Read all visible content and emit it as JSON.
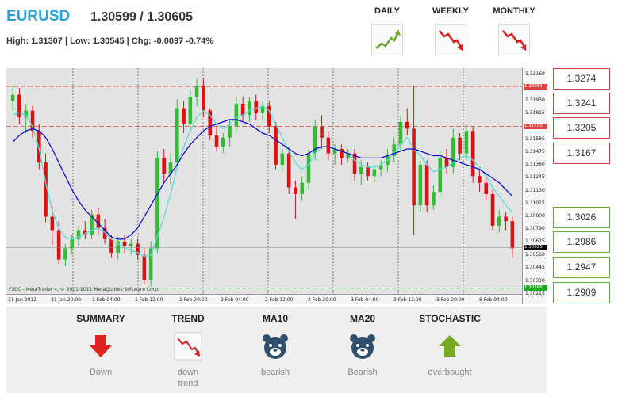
{
  "header": {
    "symbol": "EURUSD",
    "quote": "1.30599 / 1.30605",
    "stats": "High: 1.31307 | Low: 1.30545 | Chg: -0.0097 -0.74%"
  },
  "timeframes": [
    {
      "label": "DAILY",
      "icon": "trend-up-icon",
      "color": "#6aaa2a"
    },
    {
      "label": "WEEKLY",
      "icon": "trend-down-icon",
      "color": "#d02020"
    },
    {
      "label": "MONTHLY",
      "icon": "trend-down-icon",
      "color": "#d02020"
    }
  ],
  "chart": {
    "copyright": "FXCC - MetaTrader 4, © 2001-2011 MetaQuotes Software Corp.",
    "price_ticks": [
      "1.32160",
      "1.32054",
      "1.31930",
      "1.31815",
      "1.31700",
      "1.31585",
      "1.31475",
      "1.31360",
      "1.31245",
      "1.31130",
      "1.31015",
      "1.30900",
      "1.30790",
      "1.30675",
      "1.30625",
      "1.30560",
      "1.30445",
      "1.30330",
      "1.30266",
      "1.30215"
    ],
    "time_ticks": [
      "31 Jan 2012",
      "31 Jan 20:00",
      "1 Feb 04:00",
      "1 Feb 12:00",
      "1 Feb 20:00",
      "2 Feb 04:00",
      "2 Feb 12:00",
      "2 Feb 20:00",
      "3 Feb 04:00",
      "3 Feb 12:00",
      "3 Feb 20:00",
      "6 Feb 04:00"
    ],
    "colors": {
      "bull": "#33bb33",
      "bear": "#dd1111",
      "ma10": "#55dddd",
      "ma20": "#1111cc",
      "resistance": "#dd4444",
      "support": "#22aa22"
    }
  },
  "chart_data": {
    "type": "candlestick",
    "title": "EURUSD",
    "ylim": [
      1.30215,
      1.32216
    ],
    "resistance_lines": [
      1.32054,
      1.317
    ],
    "support_lines": [
      1.30266
    ],
    "last_price": 1.30625,
    "candles": [
      [
        1.3192,
        1.3206,
        1.3184,
        1.3198
      ],
      [
        1.3198,
        1.3204,
        1.3172,
        1.3178
      ],
      [
        1.3178,
        1.319,
        1.3164,
        1.3184
      ],
      [
        1.3184,
        1.3188,
        1.316,
        1.3166
      ],
      [
        1.3166,
        1.3172,
        1.3132,
        1.3138
      ],
      [
        1.3138,
        1.3146,
        1.3085,
        1.309
      ],
      [
        1.309,
        1.3099,
        1.3065,
        1.3078
      ],
      [
        1.3078,
        1.3086,
        1.3048,
        1.3052
      ],
      [
        1.3052,
        1.3066,
        1.3046,
        1.3062
      ],
      [
        1.3062,
        1.3074,
        1.3057,
        1.307
      ],
      [
        1.307,
        1.3082,
        1.3064,
        1.3078
      ],
      [
        1.3078,
        1.3086,
        1.307,
        1.3074
      ],
      [
        1.3074,
        1.3096,
        1.307,
        1.3092
      ],
      [
        1.3092,
        1.3098,
        1.3074,
        1.308
      ],
      [
        1.308,
        1.3088,
        1.3066,
        1.307
      ],
      [
        1.307,
        1.3074,
        1.3054,
        1.3058
      ],
      [
        1.3058,
        1.3072,
        1.3052,
        1.3068
      ],
      [
        1.3068,
        1.3074,
        1.3058,
        1.3064
      ],
      [
        1.3064,
        1.307,
        1.3056,
        1.3066
      ],
      [
        1.3066,
        1.307,
        1.3052,
        1.3056
      ],
      [
        1.3056,
        1.3062,
        1.303,
        1.3034
      ],
      [
        1.3034,
        1.3068,
        1.3028,
        1.3062
      ],
      [
        1.3062,
        1.3148,
        1.3058,
        1.3142
      ],
      [
        1.3142,
        1.315,
        1.312,
        1.3128
      ],
      [
        1.3128,
        1.3146,
        1.3118,
        1.3138
      ],
      [
        1.3138,
        1.3194,
        1.3132,
        1.3186
      ],
      [
        1.3186,
        1.3192,
        1.3164,
        1.3172
      ],
      [
        1.3172,
        1.3202,
        1.3166,
        1.3196
      ],
      [
        1.3196,
        1.3212,
        1.3188,
        1.3206
      ],
      [
        1.3206,
        1.3212,
        1.3178,
        1.3184
      ],
      [
        1.3184,
        1.3186,
        1.3158,
        1.3162
      ],
      [
        1.3162,
        1.317,
        1.3148,
        1.3152
      ],
      [
        1.3152,
        1.3164,
        1.3146,
        1.316
      ],
      [
        1.316,
        1.3176,
        1.3152,
        1.317
      ],
      [
        1.317,
        1.3196,
        1.3164,
        1.319
      ],
      [
        1.319,
        1.3196,
        1.3174,
        1.318
      ],
      [
        1.318,
        1.3196,
        1.3174,
        1.3192
      ],
      [
        1.3192,
        1.3198,
        1.3176,
        1.3182
      ],
      [
        1.3182,
        1.3192,
        1.3176,
        1.3188
      ],
      [
        1.3188,
        1.3192,
        1.3164,
        1.317
      ],
      [
        1.317,
        1.3174,
        1.3132,
        1.3136
      ],
      [
        1.3136,
        1.315,
        1.313,
        1.3146
      ],
      [
        1.3146,
        1.3152,
        1.311,
        1.3116
      ],
      [
        1.3116,
        1.3122,
        1.3088,
        1.311
      ],
      [
        1.311,
        1.3126,
        1.3104,
        1.312
      ],
      [
        1.312,
        1.315,
        1.3114,
        1.3146
      ],
      [
        1.3146,
        1.3176,
        1.314,
        1.317
      ],
      [
        1.317,
        1.318,
        1.315,
        1.316
      ],
      [
        1.316,
        1.3166,
        1.314,
        1.3146
      ],
      [
        1.3146,
        1.3154,
        1.3136,
        1.315
      ],
      [
        1.315,
        1.3154,
        1.3136,
        1.3142
      ],
      [
        1.3142,
        1.315,
        1.3138,
        1.3146
      ],
      [
        1.3146,
        1.315,
        1.3122,
        1.3128
      ],
      [
        1.3128,
        1.314,
        1.3118,
        1.3134
      ],
      [
        1.3134,
        1.3138,
        1.3122,
        1.3126
      ],
      [
        1.3126,
        1.3136,
        1.312,
        1.3132
      ],
      [
        1.3132,
        1.314,
        1.3126,
        1.3136
      ],
      [
        1.3136,
        1.315,
        1.313,
        1.3144
      ],
      [
        1.3144,
        1.316,
        1.3138,
        1.3154
      ],
      [
        1.3154,
        1.318,
        1.3148,
        1.3174
      ],
      [
        1.3174,
        1.3186,
        1.3162,
        1.3168
      ],
      [
        1.3168,
        1.3206,
        1.3074,
        1.31
      ],
      [
        1.31,
        1.314,
        1.3094,
        1.3136
      ],
      [
        1.3136,
        1.314,
        1.3094,
        1.31
      ],
      [
        1.31,
        1.3118,
        1.3096,
        1.3112
      ],
      [
        1.3112,
        1.3148,
        1.3106,
        1.3142
      ],
      [
        1.3142,
        1.315,
        1.3128,
        1.3134
      ],
      [
        1.3134,
        1.3168,
        1.3128,
        1.316
      ],
      [
        1.316,
        1.3164,
        1.314,
        1.3146
      ],
      [
        1.3146,
        1.3172,
        1.314,
        1.3166
      ],
      [
        1.3166,
        1.317,
        1.312,
        1.3126
      ],
      [
        1.3126,
        1.3132,
        1.3112,
        1.312
      ],
      [
        1.312,
        1.3126,
        1.3104,
        1.311
      ],
      [
        1.311,
        1.3114,
        1.3078,
        1.3082
      ],
      [
        1.3082,
        1.3096,
        1.3076,
        1.309
      ],
      [
        1.309,
        1.3094,
        1.3078,
        1.3086
      ],
      [
        1.3086,
        1.309,
        1.3054,
        1.3062
      ]
    ],
    "ma10": [
      1.318,
      1.3182,
      1.318,
      1.317,
      1.315,
      1.312,
      1.3095,
      1.308,
      1.3072,
      1.307,
      1.3072,
      1.3075,
      1.3078,
      1.308,
      1.3076,
      1.307,
      1.3066,
      1.3062,
      1.306,
      1.3058,
      1.3055,
      1.3056,
      1.3072,
      1.309,
      1.311,
      1.3134,
      1.3152,
      1.3166,
      1.3178,
      1.3184,
      1.318,
      1.3172,
      1.3168,
      1.3172,
      1.3178,
      1.318,
      1.3184,
      1.3186,
      1.3188,
      1.3184,
      1.3172,
      1.316,
      1.3148,
      1.3138,
      1.3132,
      1.3136,
      1.3146,
      1.3152,
      1.3152,
      1.315,
      1.3148,
      1.3146,
      1.314,
      1.3136,
      1.3134,
      1.3134,
      1.3136,
      1.314,
      1.3146,
      1.3154,
      1.316,
      1.315,
      1.3144,
      1.3136,
      1.313,
      1.3132,
      1.3134,
      1.3138,
      1.3142,
      1.3144,
      1.314,
      1.3134,
      1.3126,
      1.3116,
      1.3108,
      1.31,
      1.3094
    ],
    "ma20": [
      1.3156,
      1.3162,
      1.3166,
      1.3168,
      1.3166,
      1.316,
      1.315,
      1.3138,
      1.3126,
      1.3114,
      1.3104,
      1.3096,
      1.309,
      1.3084,
      1.3078,
      1.3072,
      1.307,
      1.307,
      1.3074,
      1.308,
      1.309,
      1.31,
      1.311,
      1.312,
      1.3128,
      1.3136,
      1.3146,
      1.3154,
      1.316,
      1.3166,
      1.317,
      1.3172,
      1.3174,
      1.3176,
      1.3176,
      1.3174,
      1.3172,
      1.3168,
      1.3164,
      1.3162,
      1.3158,
      1.3154,
      1.315,
      1.3146,
      1.3144,
      1.3146,
      1.315,
      1.3152,
      1.3152,
      1.315,
      1.3148,
      1.3146,
      1.3144,
      1.3142,
      1.3142,
      1.3142,
      1.3142,
      1.3144,
      1.3146,
      1.3148,
      1.315,
      1.315,
      1.3148,
      1.3146,
      1.3144,
      1.3144,
      1.3142,
      1.314,
      1.3138,
      1.3136,
      1.3134,
      1.3132,
      1.3128,
      1.3124,
      1.312,
      1.3114,
      1.3108
    ]
  },
  "levels": {
    "resistance": [
      "1.3274",
      "1.3241",
      "1.3205",
      "1.3167"
    ],
    "support": [
      "1.3026",
      "1.2986",
      "1.2947",
      "1.2909"
    ]
  },
  "summary": [
    {
      "head": "SUMMARY",
      "text": "Down",
      "icon": "arrow-down-icon"
    },
    {
      "head": "TREND",
      "text": "down trend",
      "icon": "trend-down-icon"
    },
    {
      "head": "MA10",
      "text": "bearish",
      "icon": "bear-icon"
    },
    {
      "head": "MA20",
      "text": "Bearish",
      "icon": "bear-icon"
    },
    {
      "head": "STOCHASTIC",
      "text": "overbought",
      "icon": "arrow-up-icon"
    }
  ]
}
